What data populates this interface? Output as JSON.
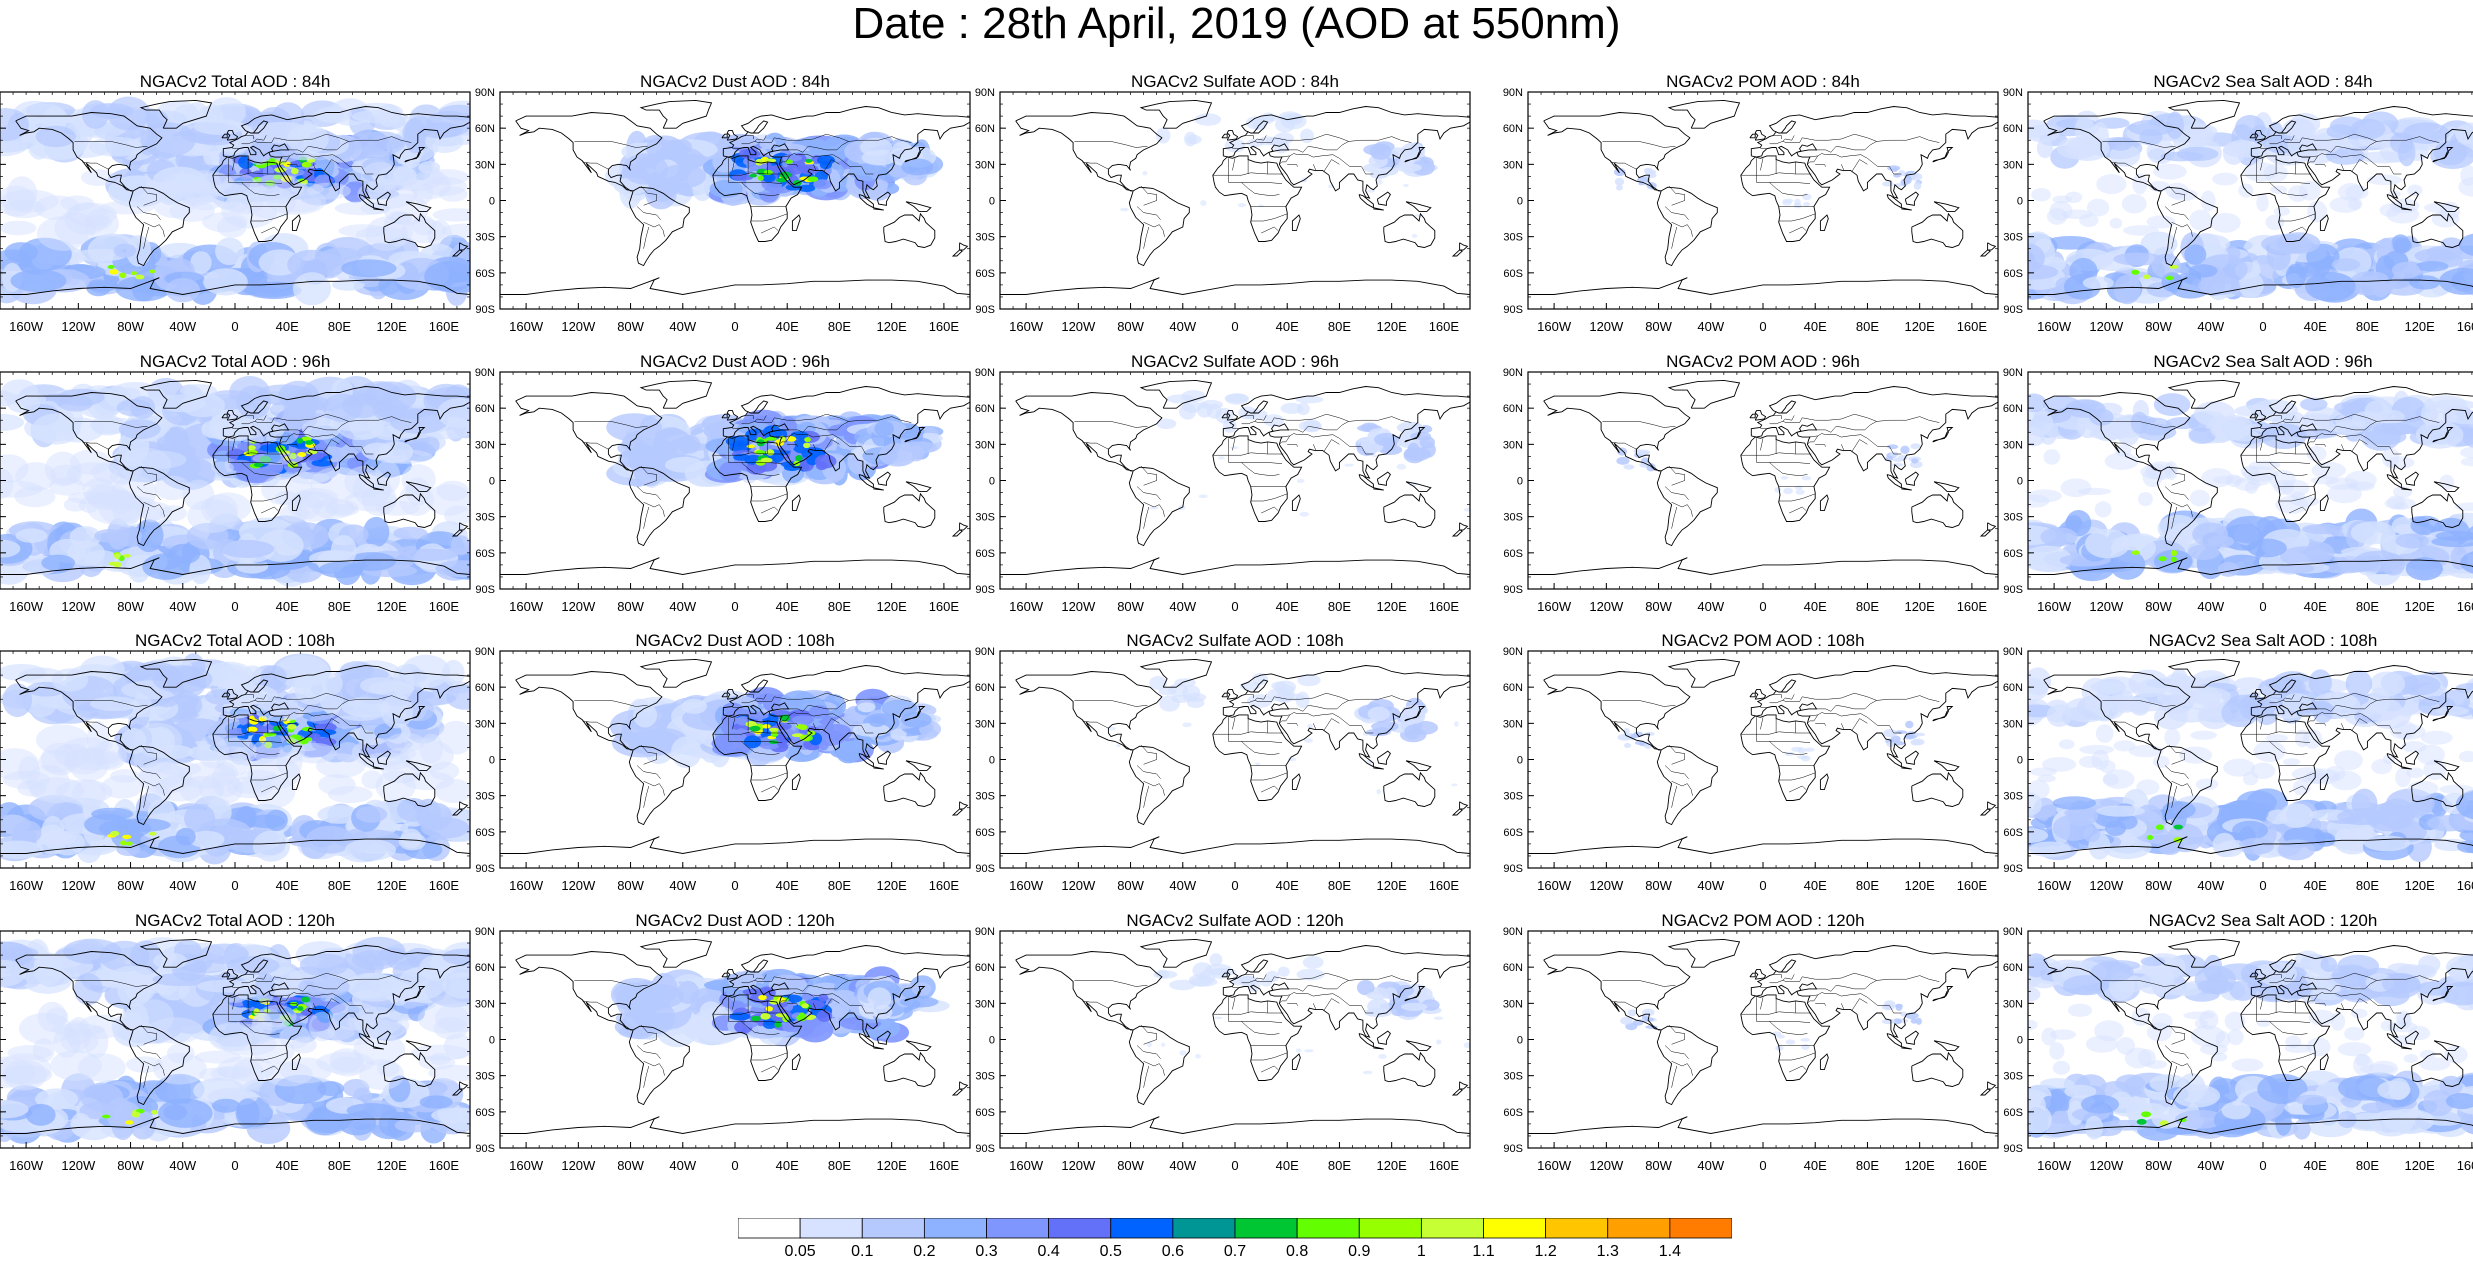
{
  "title": "Date : 28th April, 2019 (AOD at 550nm)",
  "grid": {
    "rows": [
      {
        "lead": "84h",
        "panels": [
          {
            "title": "NGACv2 Total AOD : 84h",
            "species": "total"
          },
          {
            "title": "NGACv2 Dust AOD : 84h",
            "species": "dust"
          },
          {
            "title": "NGACv2 Sulfate AOD : 84h",
            "species": "sulfate"
          },
          {
            "title": "NGACv2 POM AOD : 84h",
            "species": "pom"
          },
          {
            "title": "NGACv2 Sea Salt AOD : 84h",
            "species": "seasalt"
          }
        ]
      },
      {
        "lead": "96h",
        "panels": [
          {
            "title": "NGACv2 Total AOD : 96h",
            "species": "total"
          },
          {
            "title": "NGACv2 Dust AOD : 96h",
            "species": "dust"
          },
          {
            "title": "NGACv2 Sulfate AOD : 96h",
            "species": "sulfate"
          },
          {
            "title": "NGACv2 POM AOD : 96h",
            "species": "pom"
          },
          {
            "title": "NGACv2 Sea Salt AOD : 96h",
            "species": "seasalt"
          }
        ]
      },
      {
        "lead": "108h",
        "panels": [
          {
            "title": "NGACv2 Total AOD : 108h",
            "species": "total"
          },
          {
            "title": "NGACv2 Dust AOD : 108h",
            "species": "dust"
          },
          {
            "title": "NGACv2 Sulfate AOD : 108h",
            "species": "sulfate"
          },
          {
            "title": "NGACv2 POM AOD : 108h",
            "species": "pom"
          },
          {
            "title": "NGACv2 Sea Salt AOD : 108h",
            "species": "seasalt"
          }
        ]
      },
      {
        "lead": "120h",
        "panels": [
          {
            "title": "NGACv2 Total AOD : 120h",
            "species": "total"
          },
          {
            "title": "NGACv2 Dust AOD : 120h",
            "species": "dust"
          },
          {
            "title": "NGACv2 Sulfate AOD : 120h",
            "species": "sulfate"
          },
          {
            "title": "NGACv2 POM AOD : 120h",
            "species": "pom"
          },
          {
            "title": "NGACv2 Sea Salt  AOD : 120h",
            "species": "seasalt"
          }
        ]
      }
    ]
  },
  "axes": {
    "lat_labels": [
      "90N",
      "60N",
      "30N",
      "0",
      "30S",
      "60S",
      "90S"
    ],
    "lat_values": [
      90,
      60,
      30,
      0,
      -30,
      -60,
      -90
    ],
    "lon_labels": [
      "160W",
      "120W",
      "80W",
      "40W",
      "0",
      "40E",
      "80E",
      "120E",
      "160E"
    ],
    "lon_values": [
      -160,
      -120,
      -80,
      -40,
      0,
      40,
      80,
      120,
      160
    ]
  },
  "colorbar": {
    "labels": [
      "0.05",
      "0.1",
      "0.2",
      "0.3",
      "0.4",
      "0.5",
      "0.6",
      "0.7",
      "0.8",
      "0.9",
      "1",
      "1.1",
      "1.2",
      "1.3",
      "1.4"
    ],
    "colors": [
      "#ffffff",
      "#d6e2ff",
      "#b5c9ff",
      "#8eb2ff",
      "#7f96ff",
      "#6370f8",
      "#0063ff",
      "#009696",
      "#00c633",
      "#63ff00",
      "#96ff00",
      "#c6ff33",
      "#ffff00",
      "#ffc600",
      "#ffa000",
      "#ff7c00",
      "#ff1900"
    ]
  },
  "colors": {
    "coast": "#000000",
    "frame": "#000000"
  }
}
